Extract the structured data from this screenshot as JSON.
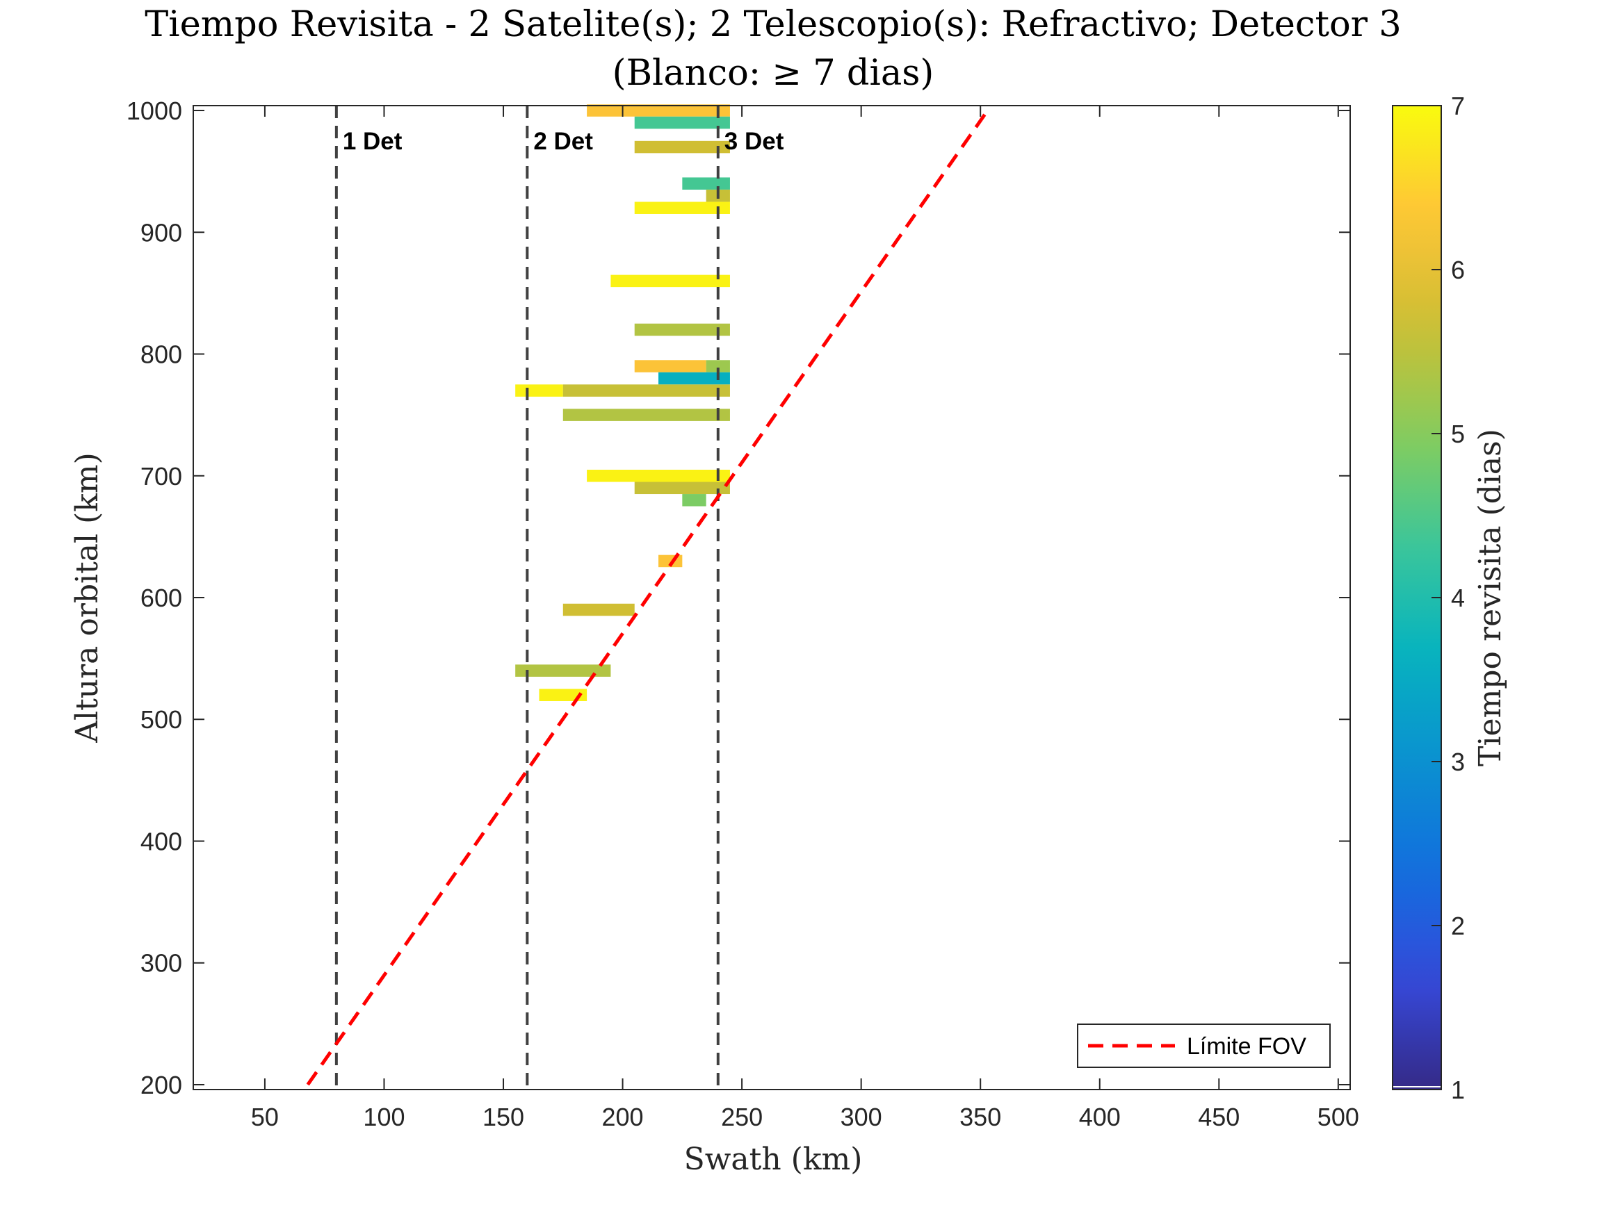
{
  "chart_data": {
    "type": "heatmap",
    "title": "Tiempo Revisita - 2 Satelite(s); 2 Telescopio(s): Refractivo; Detector 3",
    "subtitle": "(Blanco: ≥ 7 dias)",
    "xlabel": "Swath (km)",
    "ylabel": "Altura orbital (km)",
    "colorbar_label": "Tiempo revisita (dias)",
    "xlim": [
      20,
      505
    ],
    "ylim": [
      196,
      1004
    ],
    "xticks": [
      50,
      100,
      150,
      200,
      250,
      300,
      350,
      400,
      450,
      500
    ],
    "yticks": [
      200,
      300,
      400,
      500,
      600,
      700,
      800,
      900,
      1000
    ],
    "clim": [
      1,
      7
    ],
    "colorbar_ticks": [
      1,
      2,
      3,
      4,
      5,
      6,
      7
    ],
    "grid": false,
    "colormap": "parula",
    "cells": [
      {
        "x0": 185,
        "x1": 245,
        "y": 1000,
        "value": 6.3
      },
      {
        "x0": 205,
        "x1": 245,
        "y": 990,
        "value": 4.4
      },
      {
        "x0": 205,
        "x1": 245,
        "y": 970,
        "value": 5.7
      },
      {
        "x0": 225,
        "x1": 245,
        "y": 940,
        "value": 4.4
      },
      {
        "x0": 235,
        "x1": 245,
        "y": 930,
        "value": 5.6
      },
      {
        "x0": 205,
        "x1": 245,
        "y": 920,
        "value": 6.9
      },
      {
        "x0": 195,
        "x1": 245,
        "y": 860,
        "value": 6.9
      },
      {
        "x0": 205,
        "x1": 245,
        "y": 820,
        "value": 5.4
      },
      {
        "x0": 205,
        "x1": 235,
        "y": 790,
        "value": 6.3
      },
      {
        "x0": 235,
        "x1": 245,
        "y": 790,
        "value": 5.2
      },
      {
        "x0": 215,
        "x1": 245,
        "y": 780,
        "value": 3.6
      },
      {
        "x0": 155,
        "x1": 175,
        "y": 770,
        "value": 6.9
      },
      {
        "x0": 175,
        "x1": 245,
        "y": 770,
        "value": 5.6
      },
      {
        "x0": 175,
        "x1": 245,
        "y": 750,
        "value": 5.4
      },
      {
        "x0": 185,
        "x1": 245,
        "y": 700,
        "value": 6.9
      },
      {
        "x0": 205,
        "x1": 245,
        "y": 690,
        "value": 5.6
      },
      {
        "x0": 225,
        "x1": 235,
        "y": 680,
        "value": 4.9
      },
      {
        "x0": 215,
        "x1": 225,
        "y": 630,
        "value": 6.3
      },
      {
        "x0": 175,
        "x1": 205,
        "y": 590,
        "value": 5.7
      },
      {
        "x0": 155,
        "x1": 195,
        "y": 540,
        "value": 5.4
      },
      {
        "x0": 165,
        "x1": 185,
        "y": 520,
        "value": 6.9
      }
    ],
    "vertical_lines": [
      {
        "x": 80,
        "label": "1 Det"
      },
      {
        "x": 160,
        "label": "2 Det"
      },
      {
        "x": 240,
        "label": "3 Det"
      }
    ],
    "fov_limit": {
      "name": "Límite FOV",
      "color": "#ff0000",
      "x": [
        68,
        353
      ],
      "y": [
        200,
        1000
      ]
    },
    "legend": {
      "location": "bottom-right",
      "entries": [
        "Límite FOV"
      ]
    }
  }
}
